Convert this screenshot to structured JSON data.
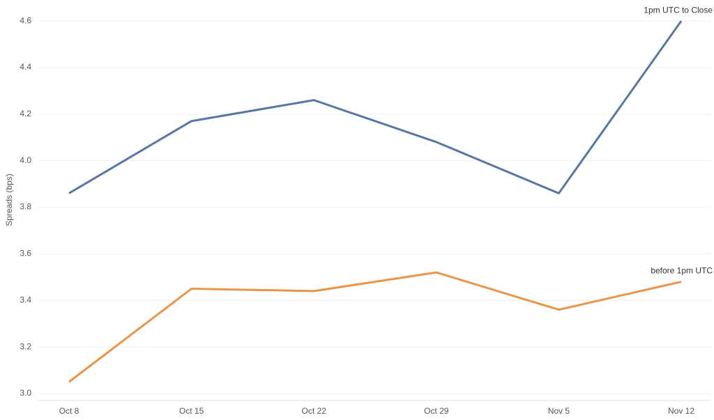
{
  "chart_data": {
    "type": "line",
    "y_label": "Spreads (bps)",
    "categories": [
      "Oct 8",
      "Oct 15",
      "Oct 22",
      "Oct 29",
      "Nov 5",
      "Nov 12"
    ],
    "series": [
      {
        "name": "1pm UTC to Close",
        "color": "#5776a3",
        "values": [
          3.86,
          4.17,
          4.26,
          4.08,
          3.86,
          4.6
        ]
      },
      {
        "name": "before 1pm UTC",
        "color": "#e8954a",
        "values": [
          3.05,
          3.45,
          3.44,
          3.52,
          3.36,
          3.48
        ]
      }
    ],
    "ylim": [
      2.97,
      4.69
    ],
    "yticks": [
      {
        "value": 3,
        "label": "3.0"
      },
      3.2,
      3.4,
      3.6,
      3.8,
      {
        "value": 4,
        "label": "4.0"
      },
      4.2,
      4.4,
      4.6
    ],
    "grid": true
  }
}
